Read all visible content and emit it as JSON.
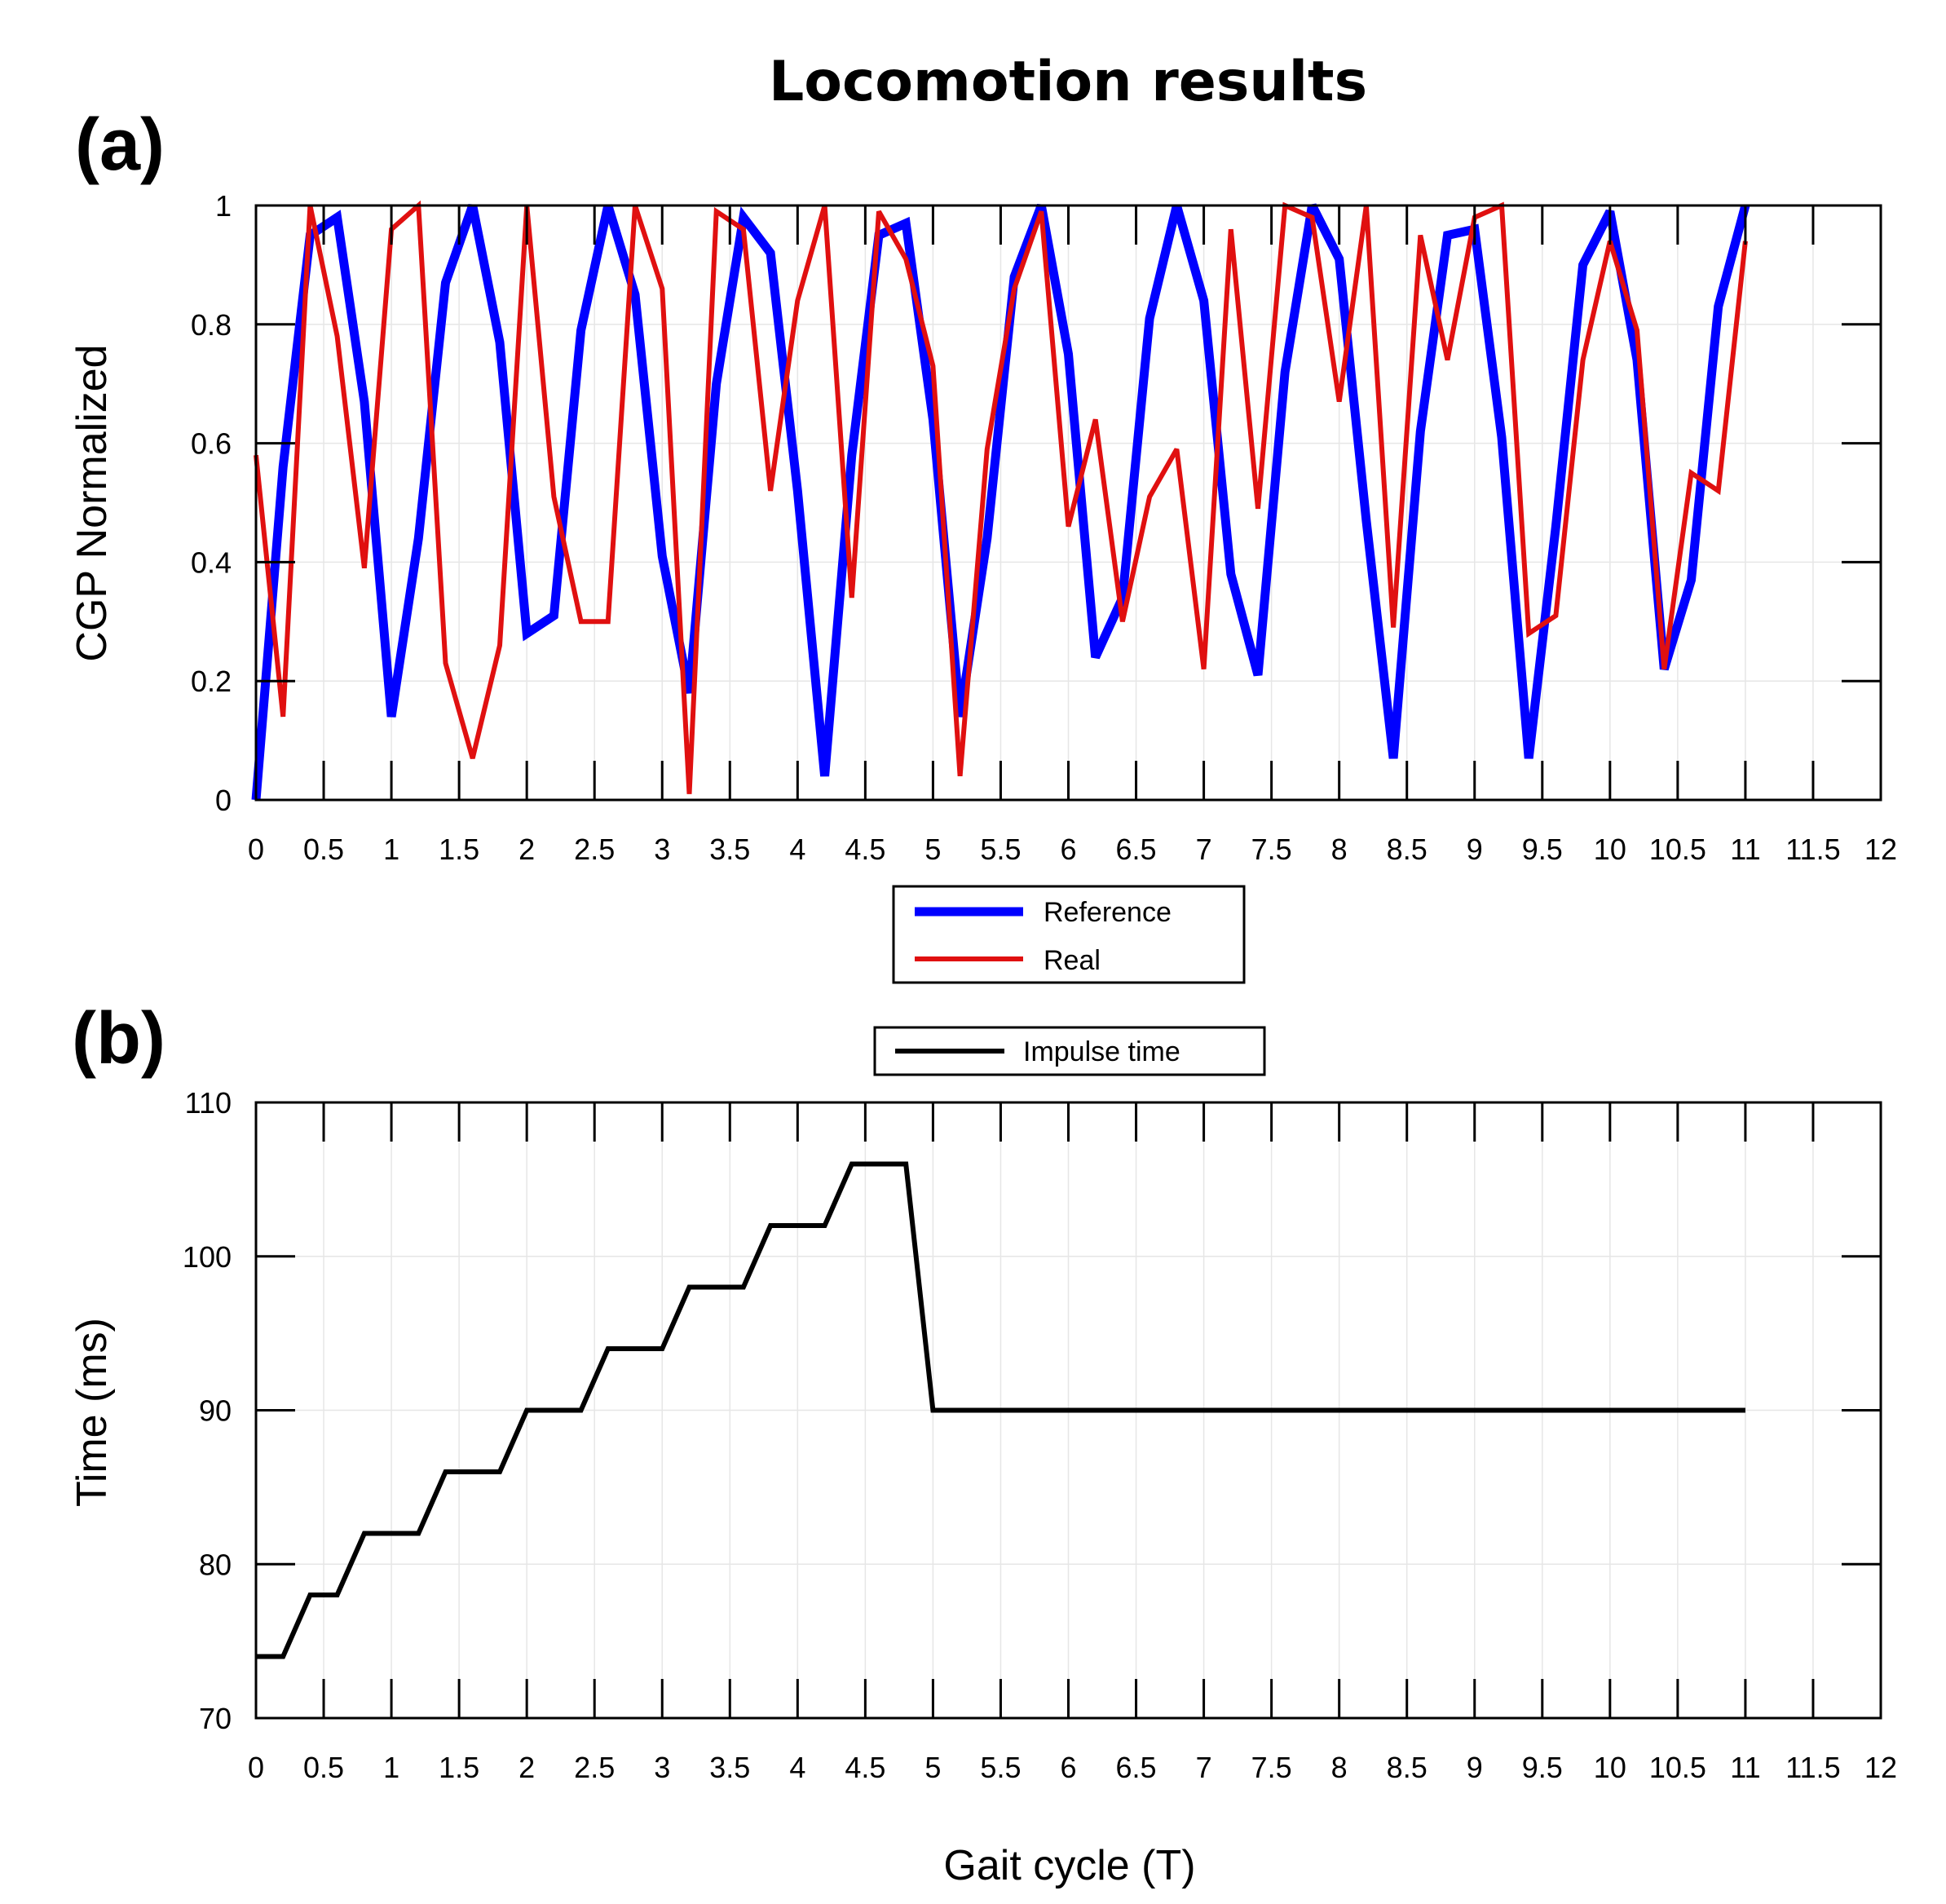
{
  "chart_data": [
    {
      "id": "a",
      "type": "line",
      "panel_label": "(a)",
      "title": "Locomotion results",
      "xlabel": "",
      "ylabel": "CGP Normalized",
      "xlim": [
        0,
        12
      ],
      "ylim": [
        0,
        1
      ],
      "xticks": [
        0,
        0.5,
        1,
        1.5,
        2,
        2.5,
        3,
        3.5,
        4,
        4.5,
        5,
        5.5,
        6,
        6.5,
        7,
        7.5,
        8,
        8.5,
        9,
        9.5,
        10,
        10.5,
        11,
        11.5,
        12
      ],
      "xtick_labels": [
        "0",
        "0.5",
        "1",
        "1.5",
        "2",
        "2.5",
        "3",
        "3.5",
        "4",
        "4.5",
        "5",
        "5.5",
        "6",
        "6.5",
        "7",
        "7.5",
        "8",
        "8.5",
        "9",
        "9.5",
        "10",
        "10.5",
        "11",
        "11.5",
        "12"
      ],
      "yticks": [
        0,
        0.2,
        0.4,
        0.6,
        0.8,
        1
      ],
      "ytick_labels": [
        "0",
        "0.2",
        "0.4",
        "0.6",
        "0.8",
        "1"
      ],
      "grid": true,
      "legend_position": "bottom-center",
      "series": [
        {
          "name": "Reference",
          "color": "#0000ff",
          "x": [
            0,
            0.2,
            0.4,
            0.6,
            0.8,
            1,
            1.2,
            1.4,
            1.6,
            1.8,
            2,
            2.2,
            2.4,
            2.6,
            2.8,
            3,
            3.2,
            3.4,
            3.6,
            3.8,
            4,
            4.2,
            4.4,
            4.6,
            4.8,
            5,
            5.2,
            5.4,
            5.6,
            5.8,
            6,
            6.2,
            6.4,
            6.6,
            6.8,
            7,
            7.2,
            7.4,
            7.6,
            7.8,
            8,
            8.2,
            8.4,
            8.6,
            8.8,
            9,
            9.2,
            9.4,
            9.6,
            9.8,
            10,
            10.2,
            10.4,
            10.6,
            10.8,
            11
          ],
          "values": [
            0,
            0.56,
            0.95,
            0.98,
            0.67,
            0.14,
            0.44,
            0.87,
            1.0,
            0.77,
            0.28,
            0.31,
            0.79,
            1.0,
            0.85,
            0.41,
            0.18,
            0.7,
            0.98,
            0.92,
            0.52,
            0.04,
            0.58,
            0.95,
            0.97,
            0.64,
            0.14,
            0.44,
            0.88,
            1.0,
            0.75,
            0.24,
            0.34,
            0.81,
            1.0,
            0.84,
            0.38,
            0.21,
            0.72,
            1.0,
            0.91,
            0.47,
            0.07,
            0.62,
            0.95,
            0.96,
            0.61,
            0.07,
            0.46,
            0.9,
            0.99,
            0.74,
            0.22,
            0.37,
            0.83,
            1.0
          ]
        },
        {
          "name": "Real",
          "color": "#e01010",
          "x": [
            0,
            0.2,
            0.4,
            0.6,
            0.8,
            1,
            1.2,
            1.4,
            1.6,
            1.8,
            2,
            2.2,
            2.4,
            2.6,
            2.8,
            3,
            3.2,
            3.4,
            3.6,
            3.8,
            4,
            4.2,
            4.4,
            4.6,
            4.8,
            5,
            5.2,
            5.4,
            5.6,
            5.8,
            6,
            6.2,
            6.4,
            6.6,
            6.8,
            7,
            7.2,
            7.4,
            7.6,
            7.8,
            8,
            8.2,
            8.4,
            8.6,
            8.8,
            9,
            9.2,
            9.4,
            9.6,
            9.8,
            10,
            10.2,
            10.4,
            10.6,
            10.8,
            11
          ],
          "values": [
            0.58,
            0.14,
            1.0,
            0.78,
            0.39,
            0.96,
            1.0,
            0.23,
            0.07,
            0.26,
            1.0,
            0.51,
            0.3,
            0.3,
            1.0,
            0.86,
            0.01,
            0.99,
            0.96,
            0.52,
            0.84,
            1.0,
            0.34,
            0.99,
            0.91,
            0.73,
            0.04,
            0.59,
            0.86,
            0.99,
            0.46,
            0.64,
            0.3,
            0.51,
            0.59,
            0.22,
            0.96,
            0.49,
            1.0,
            0.98,
            0.67,
            1.0,
            0.29,
            0.95,
            0.74,
            0.98,
            1.0,
            0.28,
            0.31,
            0.74,
            0.94,
            0.79,
            0.22,
            0.55,
            0.52,
            0.94
          ]
        }
      ]
    },
    {
      "id": "b",
      "type": "line",
      "panel_label": "(b)",
      "title": "",
      "xlabel": "Gait cycle (T)",
      "ylabel": "Time (ms)",
      "xlim": [
        0,
        12
      ],
      "ylim": [
        70,
        110
      ],
      "xticks": [
        0,
        0.5,
        1,
        1.5,
        2,
        2.5,
        3,
        3.5,
        4,
        4.5,
        5,
        5.5,
        6,
        6.5,
        7,
        7.5,
        8,
        8.5,
        9,
        9.5,
        10,
        10.5,
        11,
        11.5,
        12
      ],
      "xtick_labels": [
        "0",
        "0.5",
        "1",
        "1.5",
        "2",
        "2.5",
        "3",
        "3.5",
        "4",
        "4.5",
        "5",
        "5.5",
        "6",
        "6.5",
        "7",
        "7.5",
        "8",
        "8.5",
        "9",
        "9.5",
        "10",
        "10.5",
        "11",
        "11.5",
        "12"
      ],
      "yticks": [
        70,
        80,
        90,
        100,
        110
      ],
      "ytick_labels": [
        "70",
        "80",
        "90",
        "100",
        "110"
      ],
      "grid": true,
      "legend_position": "top-center",
      "series": [
        {
          "name": "Impulse time",
          "color": "#000000",
          "x": [
            0,
            0.2,
            0.4,
            0.6,
            0.8,
            1,
            1.2,
            1.4,
            1.6,
            1.8,
            2,
            2.2,
            2.4,
            2.6,
            2.8,
            3,
            3.2,
            3.4,
            3.6,
            3.8,
            4,
            4.2,
            4.4,
            4.6,
            4.8,
            5,
            11
          ],
          "values": [
            74,
            74,
            78,
            78,
            82,
            82,
            82,
            86,
            86,
            86,
            90,
            90,
            90,
            94,
            94,
            94,
            98,
            98,
            98,
            102,
            102,
            102,
            106,
            106,
            106,
            90,
            90
          ]
        }
      ]
    }
  ]
}
